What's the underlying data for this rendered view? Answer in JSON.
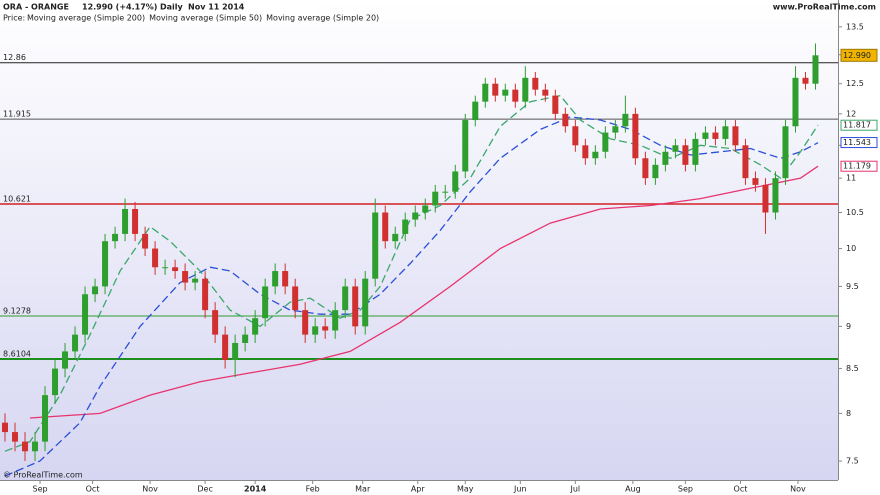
{
  "chart_data": {
    "type": "candlestick",
    "symbol": "ORA - ORANGE",
    "quote": "12.990 (+4.17%)",
    "period": "Daily",
    "date": "Nov 11 2014",
    "source": "www.ProRealTime.com",
    "copyright": "© ProRealTime.com",
    "legend_prefix": "Price:",
    "log_scale": true,
    "up_color": "#2e9e2e",
    "down_color": "#d0302f",
    "xlim": [
      0,
      335
    ],
    "xticks": [
      {
        "value": 16,
        "label": "Sep"
      },
      {
        "value": 37,
        "label": "Oct"
      },
      {
        "value": 60,
        "label": "Nov"
      },
      {
        "value": 82,
        "label": "Dec"
      },
      {
        "value": 102,
        "label": "2014"
      },
      {
        "value": 125,
        "label": "Feb"
      },
      {
        "value": 145,
        "label": "Mar"
      },
      {
        "value": 167,
        "label": "Apr"
      },
      {
        "value": 186,
        "label": "May"
      },
      {
        "value": 208,
        "label": "Jun"
      },
      {
        "value": 230,
        "label": "Jul"
      },
      {
        "value": 253,
        "label": "Aug"
      },
      {
        "value": 274,
        "label": "Sep"
      },
      {
        "value": 296,
        "label": "Oct"
      },
      {
        "value": 319,
        "label": "Nov"
      }
    ],
    "ylim": [
      7.31,
      14.0
    ],
    "yticks": [
      {
        "value": 13.5,
        "label": "13.5"
      },
      13,
      12.5,
      12,
      11.5,
      11,
      10.5,
      10,
      9.5,
      9,
      8.5,
      8,
      7.5
    ],
    "x": [
      2,
      6,
      10,
      14,
      18,
      22,
      26,
      30,
      34,
      38,
      42,
      46,
      50,
      54,
      58,
      62,
      66,
      70,
      74,
      78,
      82,
      86,
      90,
      94,
      98,
      102,
      106,
      110,
      114,
      118,
      122,
      126,
      130,
      134,
      138,
      142,
      146,
      150,
      154,
      158,
      162,
      166,
      170,
      174,
      178,
      182,
      186,
      190,
      194,
      198,
      202,
      206,
      210,
      214,
      218,
      222,
      226,
      230,
      234,
      238,
      242,
      246,
      250,
      254,
      258,
      262,
      266,
      270,
      274,
      278,
      282,
      286,
      290,
      294,
      298,
      302,
      306,
      310,
      314,
      318,
      322,
      326
    ],
    "open": [
      7.9,
      7.8,
      7.7,
      7.6,
      7.7,
      8.2,
      8.5,
      8.7,
      8.9,
      9.4,
      9.5,
      10.1,
      10.2,
      10.55,
      10.2,
      10.0,
      9.75,
      9.75,
      9.7,
      9.55,
      9.6,
      9.2,
      8.9,
      8.6,
      8.8,
      8.9,
      9.1,
      9.5,
      9.7,
      9.5,
      9.2,
      8.9,
      9.0,
      8.95,
      9.2,
      9.5,
      9.0,
      9.6,
      10.5,
      10.1,
      10.2,
      10.4,
      10.5,
      10.6,
      10.8,
      10.8,
      11.1,
      11.9,
      12.2,
      12.5,
      12.3,
      12.4,
      12.2,
      12.6,
      12.4,
      12.3,
      12.0,
      11.8,
      11.5,
      11.3,
      11.4,
      11.7,
      11.8,
      12.0,
      11.3,
      11.0,
      11.2,
      11.4,
      11.5,
      11.2,
      11.6,
      11.7,
      11.6,
      11.8,
      11.5,
      11.0,
      10.9,
      10.5,
      11.0,
      11.8,
      12.6,
      12.5
    ],
    "high": [
      8.0,
      7.9,
      7.8,
      7.8,
      8.3,
      8.6,
      8.8,
      9.0,
      9.5,
      9.6,
      10.2,
      10.3,
      10.7,
      10.65,
      10.3,
      10.1,
      9.85,
      9.85,
      9.8,
      9.7,
      9.7,
      9.3,
      9.0,
      8.9,
      9.0,
      9.2,
      9.6,
      9.8,
      9.8,
      9.6,
      9.3,
      9.1,
      9.1,
      9.3,
      9.6,
      9.6,
      9.7,
      10.7,
      10.6,
      10.3,
      10.5,
      10.6,
      10.7,
      10.9,
      10.9,
      11.2,
      12.0,
      12.3,
      12.6,
      12.6,
      12.5,
      12.5,
      12.8,
      12.7,
      12.5,
      12.4,
      12.1,
      11.9,
      11.6,
      11.5,
      11.8,
      11.9,
      12.3,
      12.1,
      11.4,
      11.3,
      11.5,
      11.6,
      11.6,
      11.7,
      11.8,
      11.8,
      11.9,
      11.9,
      11.6,
      11.1,
      11.0,
      11.1,
      11.9,
      12.8,
      12.7,
      13.2
    ],
    "low": [
      7.7,
      7.6,
      7.5,
      7.5,
      7.6,
      8.1,
      8.4,
      8.6,
      8.8,
      9.3,
      9.4,
      10.0,
      10.1,
      10.1,
      9.9,
      9.65,
      9.65,
      9.6,
      9.45,
      9.45,
      9.1,
      8.8,
      8.5,
      8.4,
      8.7,
      8.8,
      9.0,
      9.4,
      9.4,
      9.1,
      8.8,
      8.8,
      8.85,
      8.85,
      9.1,
      8.9,
      8.9,
      9.5,
      10.0,
      10.0,
      10.1,
      10.3,
      10.4,
      10.5,
      10.7,
      10.7,
      11.0,
      11.8,
      12.1,
      12.2,
      12.2,
      12.1,
      12.1,
      12.3,
      12.2,
      11.9,
      11.7,
      11.4,
      11.2,
      11.2,
      11.3,
      11.6,
      11.7,
      11.2,
      10.9,
      10.9,
      11.1,
      11.3,
      11.1,
      11.1,
      11.5,
      11.5,
      11.5,
      11.4,
      10.9,
      10.8,
      10.2,
      10.4,
      10.9,
      11.7,
      12.4,
      12.4
    ],
    "close": [
      7.8,
      7.7,
      7.6,
      7.7,
      8.2,
      8.5,
      8.7,
      8.9,
      9.4,
      9.5,
      10.1,
      10.2,
      10.55,
      10.2,
      10.0,
      9.75,
      9.75,
      9.7,
      9.55,
      9.6,
      9.2,
      8.9,
      8.6,
      8.8,
      8.9,
      9.1,
      9.5,
      9.7,
      9.5,
      9.2,
      8.9,
      9.0,
      8.95,
      9.2,
      9.5,
      9.0,
      9.6,
      10.5,
      10.1,
      10.2,
      10.4,
      10.5,
      10.6,
      10.8,
      10.8,
      11.1,
      11.9,
      12.2,
      12.5,
      12.3,
      12.4,
      12.2,
      12.6,
      12.4,
      12.3,
      12.0,
      11.8,
      11.5,
      11.3,
      11.4,
      11.7,
      11.8,
      12.0,
      11.3,
      11.0,
      11.2,
      11.4,
      11.5,
      11.2,
      11.6,
      11.7,
      11.6,
      11.8,
      11.5,
      11.0,
      10.9,
      10.5,
      11.0,
      11.8,
      12.6,
      12.5,
      12.99
    ],
    "close_marker": {
      "value": 12.99,
      "label": "12.990",
      "color": "#f0b400"
    },
    "series": [
      {
        "name": "Moving average (Simple 200)",
        "color": "#e8336e",
        "dash": false,
        "x": [
          12,
          40,
          60,
          80,
          100,
          120,
          140,
          160,
          180,
          200,
          220,
          240,
          260,
          280,
          300,
          320,
          327
        ],
        "values": [
          7.95,
          8.0,
          8.2,
          8.35,
          8.45,
          8.55,
          8.7,
          9.05,
          9.5,
          10.0,
          10.35,
          10.55,
          10.6,
          10.7,
          10.85,
          11.0,
          11.18
        ],
        "marker": {
          "value": 11.179,
          "label": "11.179"
        }
      },
      {
        "name": "Moving average (Simple 50)",
        "color": "#2a4fd8",
        "dash": true,
        "x": [
          2,
          16,
          32,
          40,
          56,
          72,
          84,
          92,
          104,
          116,
          128,
          140,
          152,
          164,
          176,
          188,
          200,
          216,
          228,
          240,
          252,
          264,
          276,
          288,
          300,
          312,
          320,
          327
        ],
        "values": [
          7.35,
          7.5,
          7.9,
          8.3,
          9.0,
          9.55,
          9.75,
          9.7,
          9.4,
          9.2,
          9.15,
          9.15,
          9.4,
          9.8,
          10.25,
          10.8,
          11.3,
          11.75,
          11.95,
          11.9,
          11.75,
          11.5,
          11.35,
          11.4,
          11.45,
          11.3,
          11.4,
          11.54
        ],
        "marker": {
          "value": 11.543,
          "label": "11.543"
        }
      },
      {
        "name": "Moving average (Simple 20)",
        "color": "#3aa86a",
        "dash": true,
        "x": [
          2,
          12,
          24,
          36,
          48,
          60,
          68,
          80,
          92,
          104,
          116,
          124,
          136,
          144,
          152,
          164,
          176,
          188,
          200,
          212,
          224,
          232,
          244,
          256,
          268,
          280,
          292,
          304,
          312,
          320,
          327
        ],
        "values": [
          7.6,
          7.7,
          8.2,
          8.9,
          9.7,
          10.3,
          10.1,
          9.7,
          9.2,
          9.0,
          9.3,
          9.35,
          9.1,
          9.2,
          9.5,
          10.4,
          10.6,
          11.0,
          11.8,
          12.2,
          12.3,
          11.9,
          11.6,
          11.5,
          11.3,
          11.5,
          11.45,
          11.2,
          11.0,
          11.4,
          11.82
        ],
        "marker": {
          "value": 11.817,
          "label": "11.817"
        }
      }
    ],
    "levels": [
      {
        "value": 12.86,
        "color": "#222222",
        "width": 1
      },
      {
        "value": 11.915,
        "color": "#555555",
        "width": 1
      },
      {
        "value": 10.621,
        "color": "#d42020",
        "width": 1.5
      },
      {
        "value": 9.1278,
        "color": "#2e9e2e",
        "width": 1
      },
      {
        "value": 8.6104,
        "color": "#1e8e1e",
        "width": 2
      }
    ]
  }
}
